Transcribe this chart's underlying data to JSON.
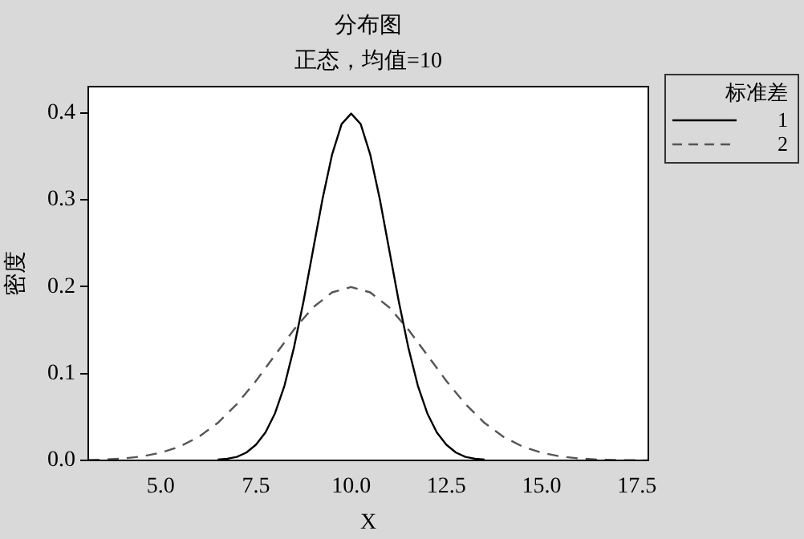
{
  "chart_data": {
    "type": "line",
    "title": "分布图",
    "subtitle": "正态，均值=10",
    "xlabel": "X",
    "ylabel": "密度",
    "legend_title": "标准差",
    "xlim": [
      3.1,
      17.8
    ],
    "xticks": [
      {
        "value": 5,
        "label": "5.0"
      },
      {
        "value": 7.5,
        "label": "7.5"
      },
      {
        "value": 10,
        "label": "10.0"
      },
      {
        "value": 12.5,
        "label": "12.5"
      },
      {
        "value": 15,
        "label": "15.0"
      },
      {
        "value": 17.5,
        "label": "17.5"
      }
    ],
    "ylim": [
      0,
      0.43
    ],
    "yticks": [
      {
        "value": 0,
        "label": "0.0"
      },
      {
        "value": 0.1,
        "label": "0.1"
      },
      {
        "value": 0.2,
        "label": "0.2"
      },
      {
        "value": 0.3,
        "label": "0.3"
      },
      {
        "value": 0.4,
        "label": "0.4"
      }
    ],
    "grid": false,
    "legend": "top right",
    "marker": "none",
    "series": [
      {
        "name": "1",
        "color": "#000000",
        "line_style": "solid",
        "x": [
          6.5,
          6.75,
          7,
          7.25,
          7.5,
          7.75,
          8,
          8.25,
          8.5,
          8.75,
          9,
          9.25,
          9.5,
          9.75,
          10,
          10.25,
          10.5,
          10.75,
          11,
          11.25,
          11.5,
          11.75,
          12,
          12.25,
          12.5,
          12.75,
          13,
          13.25,
          13.5
        ],
        "values": [
          0.001,
          0.002,
          0.004,
          0.009,
          0.018,
          0.032,
          0.054,
          0.086,
          0.13,
          0.183,
          0.242,
          0.301,
          0.352,
          0.387,
          0.399,
          0.387,
          0.352,
          0.301,
          0.242,
          0.183,
          0.13,
          0.086,
          0.054,
          0.032,
          0.018,
          0.009,
          0.004,
          0.002,
          0.001
        ]
      },
      {
        "name": "2",
        "color": "#555555",
        "line_style": "dashed",
        "x": [
          3.1,
          3.5,
          4,
          4.5,
          5,
          5.5,
          6,
          6.5,
          7,
          7.5,
          8,
          8.5,
          9,
          9.5,
          10,
          10.5,
          11,
          11.5,
          12,
          12.5,
          13,
          13.5,
          14,
          14.5,
          15,
          15.5,
          16,
          16.5,
          17,
          17.5,
          17.8
        ],
        "values": [
          0.0005,
          0.0009,
          0.0022,
          0.0045,
          0.0088,
          0.0159,
          0.027,
          0.0431,
          0.0648,
          0.0913,
          0.121,
          0.1506,
          0.176,
          0.1933,
          0.1995,
          0.1933,
          0.176,
          0.1506,
          0.121,
          0.0913,
          0.0648,
          0.0431,
          0.027,
          0.0159,
          0.0088,
          0.0045,
          0.0022,
          0.0009,
          0.0004,
          0.0002,
          0.0001
        ]
      }
    ]
  }
}
